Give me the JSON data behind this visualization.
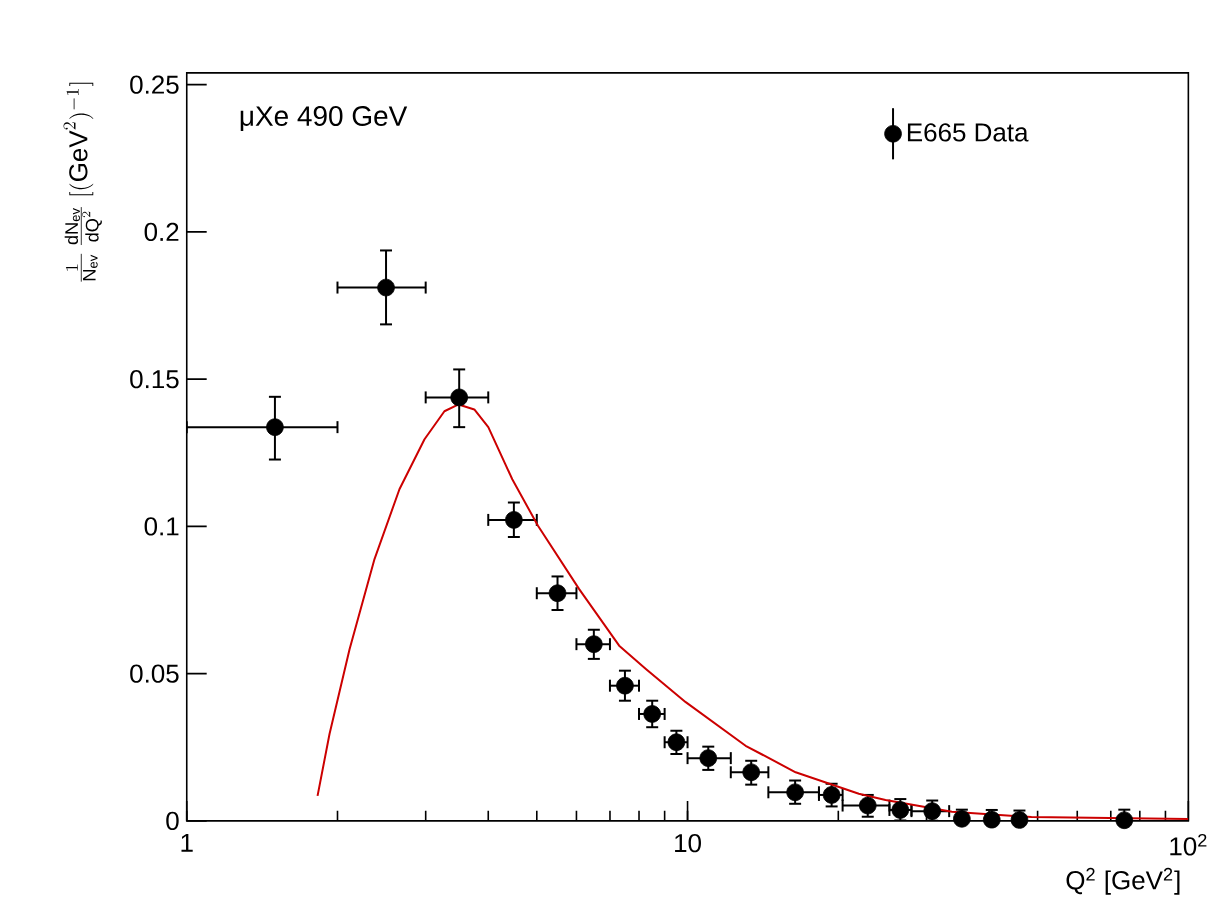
{
  "chart_data": {
    "type": "scatter",
    "xlabel": "Q$^{2}$ [GeV$^{2}$]",
    "ylabel": "\\frac{1}{\\mathrm{N}_{\\mathrm{ev}}}\\,\\frac{\\mathrm{dN}_{\\mathrm{ev}}}{\\mathrm{dQ}^{2}}\\;[(\\mathrm{GeV}^{2})^{-1}]",
    "annotations": [
      "μXe 490 GeV"
    ],
    "log": "x",
    "xlim": [
      1,
      100
    ],
    "ylim": [
      0,
      0.254
    ],
    "xticks": [
      1,
      10,
      {
        "value": 100,
        "label": "10$^{2}$"
      }
    ],
    "yticks": [
      0,
      0.05,
      0.1,
      0.15,
      0.2,
      0.25
    ],
    "grid": false,
    "legend": "top right",
    "series": [
      {
        "name": "E665 Data",
        "marker": "circle",
        "color": "#000000",
        "x": [
          1.5,
          2.5,
          3.5,
          4.5,
          5.5,
          6.5,
          7.5,
          8.5,
          9.5,
          11,
          13.4,
          16.4,
          19.4,
          22.9,
          26.6,
          30.8,
          35.3,
          40.5,
          46,
          74.5
        ],
        "values": [
          0.1337,
          0.1811,
          0.1438,
          0.1022,
          0.0773,
          0.06,
          0.0459,
          0.0363,
          0.0267,
          0.0213,
          0.0165,
          0.0097,
          0.0088,
          0.0052,
          0.0037,
          0.0033,
          0.0007,
          0.0004,
          0.0003,
          0.0002
        ],
        "errors": [
          [
            0.1227,
            0.144
          ],
          [
            0.1686,
            0.1937
          ],
          [
            0.1337,
            0.1533
          ],
          [
            0.0964,
            0.1081
          ],
          [
            0.0716,
            0.083
          ],
          [
            0.055,
            0.0649
          ],
          [
            0.0408,
            0.051
          ],
          [
            0.0318,
            0.0408
          ],
          [
            0.0227,
            0.0306
          ],
          [
            0.0173,
            0.0252
          ],
          [
            0.0123,
            0.0204
          ],
          [
            0.0058,
            0.0137
          ],
          [
            0.0049,
            0.0126
          ],
          [
            0.0014,
            0.0088
          ],
          [
            0.0001,
            0.0074
          ],
          [
            0,
            0.0069
          ],
          [
            0,
            0.0038
          ],
          [
            0,
            0.0037
          ],
          [
            0,
            0.0035
          ],
          [
            0,
            0.0038
          ]
        ],
        "xerrors": [
          [
            1,
            2
          ],
          [
            2,
            3
          ],
          [
            3,
            4
          ],
          [
            4,
            5
          ],
          [
            5,
            6
          ],
          [
            6,
            7
          ],
          [
            7,
            8
          ],
          [
            8,
            9
          ],
          [
            9,
            10
          ],
          [
            10,
            12.2
          ],
          [
            12.2,
            14.5
          ],
          [
            14.5,
            18.3
          ],
          [
            18.3,
            20.4
          ],
          [
            20.4,
            25.3
          ],
          [
            25.3,
            28
          ],
          [
            28,
            33.3
          ],
          null,
          null,
          null,
          null
        ]
      },
      {
        "type": "line",
        "marker": "none",
        "color": "#cc0000",
        "x": [
          1.825,
          1.928,
          2.114,
          2.371,
          2.659,
          2.984,
          3.27,
          3.49,
          3.752,
          4.001,
          4.467,
          5.027,
          6.076,
          7.302,
          8.256,
          9.917,
          13.06,
          16.44,
          21.98,
          24.85,
          33.73,
          48.6,
          100
        ],
        "values": [
          0.0085,
          0.0295,
          0.0583,
          0.0889,
          0.1126,
          0.1296,
          0.1391,
          0.1414,
          0.1397,
          0.1337,
          0.116,
          0.1002,
          0.0787,
          0.0595,
          0.0516,
          0.0403,
          0.0255,
          0.0165,
          0.0092,
          0.0071,
          0.0031,
          0.0013,
          0.0006
        ]
      }
    ]
  }
}
